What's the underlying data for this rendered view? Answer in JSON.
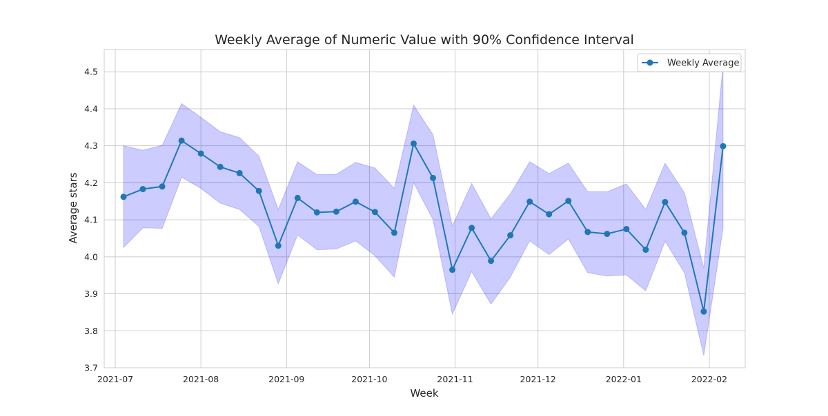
{
  "chart_data": {
    "type": "line",
    "title": "Weekly Average of Numeric Value with 90% Confidence Interval",
    "xlabel": "Week",
    "ylabel": "Average stars",
    "ylim": [
      3.7,
      4.56
    ],
    "xlim": [
      "2021-06-27",
      "2022-02-14"
    ],
    "grid": true,
    "legend_position": "top-right",
    "x_ticks": [
      {
        "date": "2021-07-01",
        "label": "2021-07"
      },
      {
        "date": "2021-08-01",
        "label": "2021-08"
      },
      {
        "date": "2021-09-01",
        "label": "2021-09"
      },
      {
        "date": "2021-10-01",
        "label": "2021-10"
      },
      {
        "date": "2021-11-01",
        "label": "2021-11"
      },
      {
        "date": "2021-12-01",
        "label": "2021-12"
      },
      {
        "date": "2022-01-01",
        "label": "2022-01"
      },
      {
        "date": "2022-02-01",
        "label": "2022-02"
      }
    ],
    "y_ticks": [
      "3.7",
      "3.8",
      "3.9",
      "4.0",
      "4.1",
      "4.2",
      "4.3",
      "4.4",
      "4.5"
    ],
    "colors": {
      "line": "#1f77b4",
      "band": "#0000ff",
      "grid": "#cccccc",
      "frame": "#cccccc"
    },
    "series": [
      {
        "name": "Weekly Average",
        "x": [
          "2021-07-04",
          "2021-07-11",
          "2021-07-18",
          "2021-07-25",
          "2021-08-01",
          "2021-08-08",
          "2021-08-15",
          "2021-08-22",
          "2021-08-29",
          "2021-09-05",
          "2021-09-12",
          "2021-09-19",
          "2021-09-26",
          "2021-10-03",
          "2021-10-10",
          "2021-10-17",
          "2021-10-24",
          "2021-10-31",
          "2021-11-07",
          "2021-11-14",
          "2021-11-21",
          "2021-11-28",
          "2021-12-05",
          "2021-12-12",
          "2021-12-19",
          "2021-12-26",
          "2022-01-02",
          "2022-01-09",
          "2022-01-16",
          "2022-01-23",
          "2022-01-30",
          "2022-02-06"
        ],
        "y": [
          4.162,
          4.183,
          4.19,
          4.314,
          4.279,
          4.243,
          4.226,
          4.178,
          4.03,
          4.159,
          4.12,
          4.122,
          4.149,
          4.121,
          4.065,
          4.306,
          4.213,
          3.965,
          4.078,
          3.989,
          4.058,
          4.149,
          4.115,
          4.151,
          4.067,
          4.062,
          4.075,
          4.019,
          4.148,
          4.065,
          3.852,
          4.299
        ],
        "lower": [
          4.025,
          4.078,
          4.077,
          4.215,
          4.185,
          4.145,
          4.128,
          4.082,
          3.927,
          4.059,
          4.019,
          4.021,
          4.043,
          4.003,
          3.945,
          4.2,
          4.101,
          3.845,
          3.96,
          3.872,
          3.945,
          4.043,
          4.006,
          4.048,
          3.957,
          3.948,
          3.951,
          3.908,
          4.042,
          3.957,
          3.733,
          4.078
        ],
        "upper": [
          4.3,
          4.288,
          4.301,
          4.414,
          4.377,
          4.338,
          4.322,
          4.272,
          4.128,
          4.257,
          4.222,
          4.223,
          4.255,
          4.24,
          4.185,
          4.41,
          4.33,
          4.083,
          4.198,
          4.103,
          4.17,
          4.257,
          4.225,
          4.253,
          4.176,
          4.176,
          4.197,
          4.128,
          4.253,
          4.173,
          3.97,
          4.52
        ]
      }
    ]
  }
}
